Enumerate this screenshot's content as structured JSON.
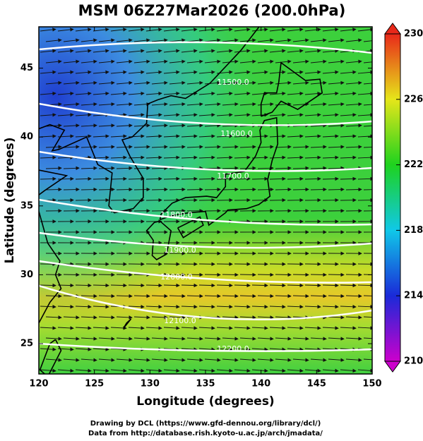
{
  "title": "MSM 06Z27Mar2026 (200.0hPa)",
  "x_axis": {
    "label": "Longitude (degrees)",
    "lim": [
      120,
      150
    ],
    "ticks": [
      120,
      125,
      130,
      135,
      140,
      145,
      150
    ]
  },
  "y_axis": {
    "label": "Latitude  (degrees)",
    "lim": [
      22.8,
      48
    ],
    "ticks": [
      25,
      30,
      35,
      40,
      45
    ]
  },
  "colorbar": {
    "lim": [
      210,
      230
    ],
    "ticks": [
      210,
      214,
      218,
      222,
      226,
      230
    ]
  },
  "contours": [
    {
      "value": 11500,
      "label": "11500.0"
    },
    {
      "value": 11600,
      "label": "11600.0"
    },
    {
      "value": 11700,
      "label": "11700.0"
    },
    {
      "value": 11800,
      "label": "11800.0"
    },
    {
      "value": 11900,
      "label": "11900.0"
    },
    {
      "value": 12000,
      "label": "12000.0"
    },
    {
      "value": 12100,
      "label": "12100.0"
    },
    {
      "value": 12200,
      "label": "12200.0"
    }
  ],
  "footer": [
    "Drawing by DCL (https://www.gfd-dennou.org/library/dcl/)",
    "Data from http://database.rish.kyoto-u.ac.jp/arch/jmadata/"
  ]
}
